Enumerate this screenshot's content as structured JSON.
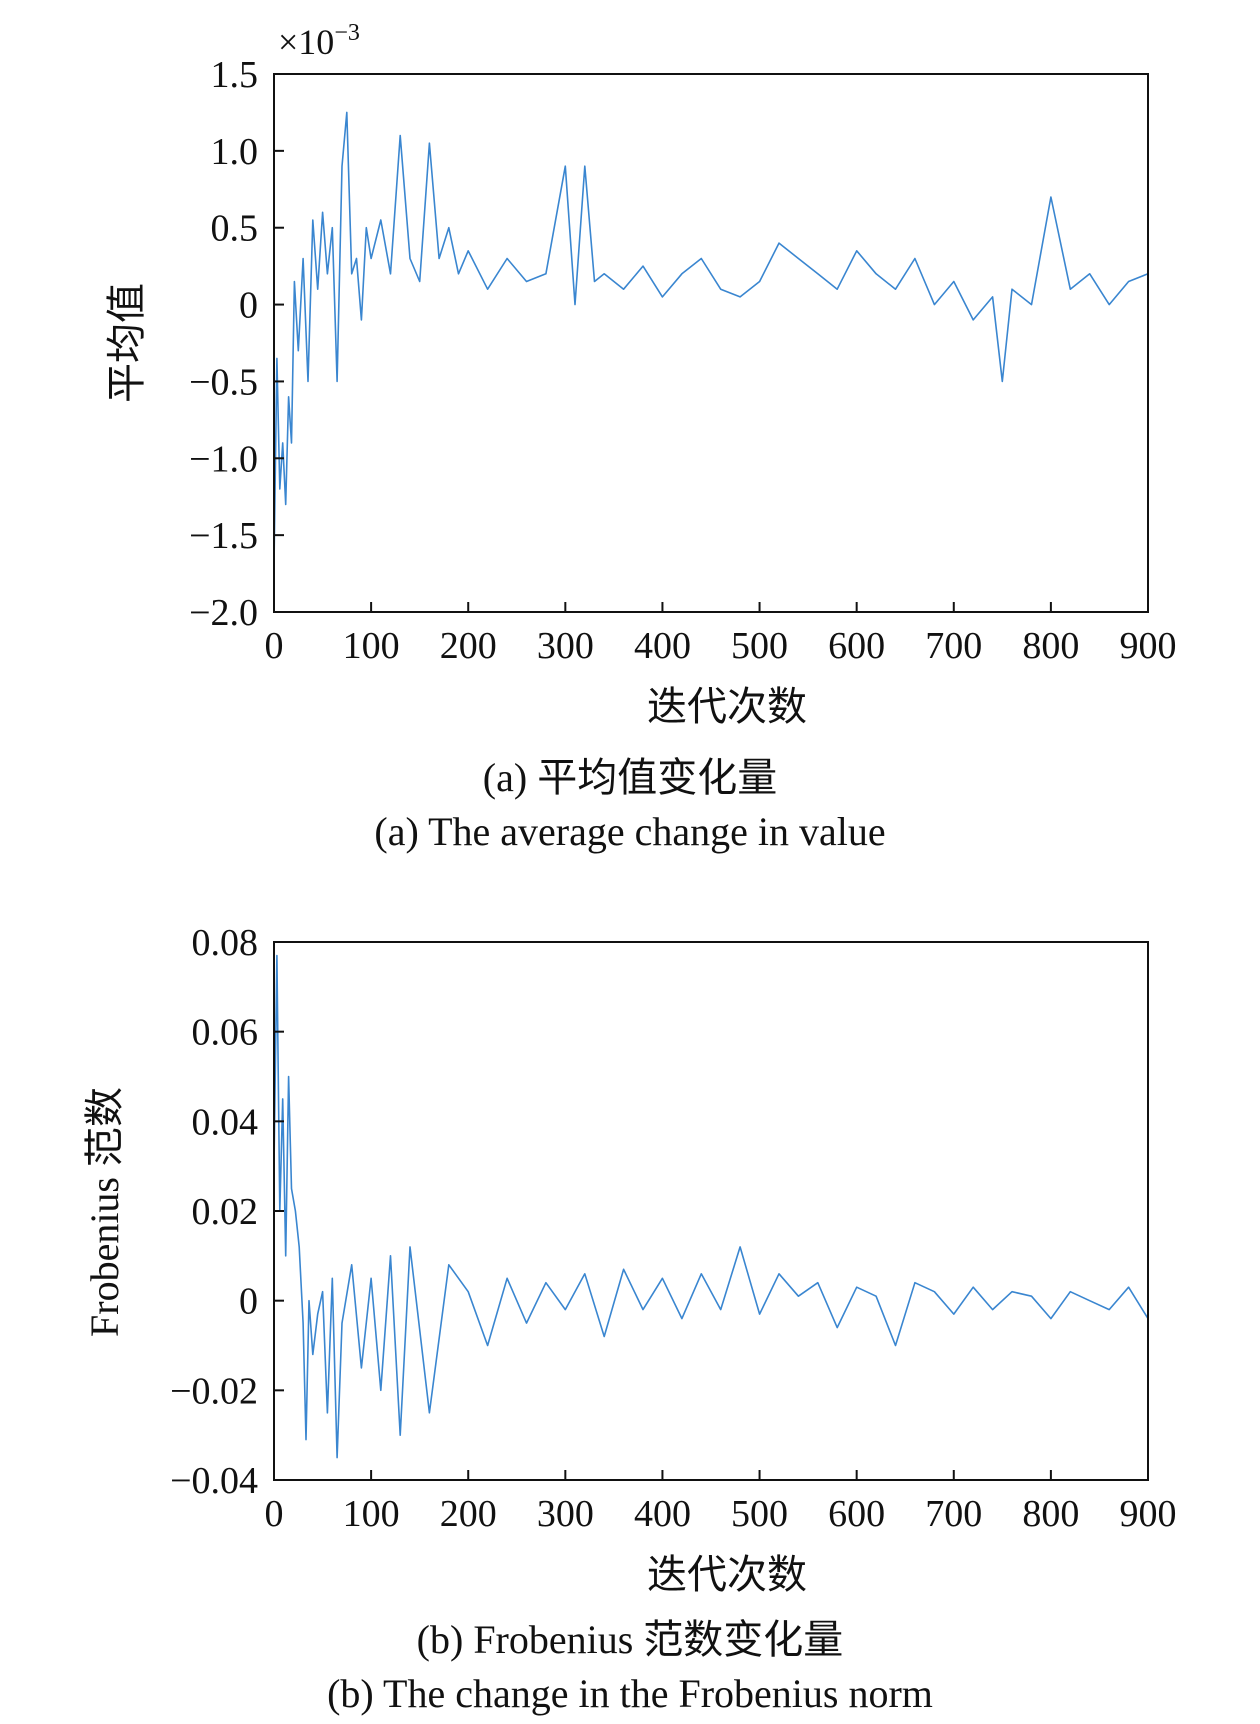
{
  "colors": {
    "series": "#3a86d0",
    "axis": "#111111"
  },
  "charts": [
    {
      "caption_cn": "(a) 平均值变化量",
      "caption_en": "(a) The average change in value",
      "chart_data": {
        "type": "line",
        "ylabel": "平均值",
        "xlabel": "迭代次数",
        "multiplier": "×10",
        "multiplier_exp": "−3",
        "xlim": [
          0,
          900
        ],
        "ylim": [
          -2.0,
          1.5
        ],
        "xticks": [
          "0",
          "100",
          "200",
          "300",
          "400",
          "500",
          "600",
          "700",
          "800",
          "900"
        ],
        "yticks": [
          "1.5",
          "1.0",
          "0.5",
          "0",
          "−0.5",
          "−1.0",
          "−1.5",
          "−2.0"
        ],
        "grid": false,
        "series": [
          {
            "x": [
              0,
              3,
              6,
              9,
              12,
              15,
              18,
              21,
              25,
              30,
              35,
              40,
              45,
              50,
              55,
              60,
              65,
              70,
              75,
              80,
              85,
              90,
              95,
              100,
              110,
              120,
              130,
              140,
              150,
              160,
              170,
              180,
              190,
              200,
              220,
              240,
              260,
              280,
              300,
              310,
              320,
              330,
              340,
              360,
              380,
              400,
              420,
              440,
              460,
              480,
              500,
              520,
              540,
              560,
              580,
              600,
              620,
              640,
              660,
              680,
              700,
              720,
              740,
              750,
              760,
              780,
              800,
              820,
              840,
              860,
              880,
              900
            ],
            "values": [
              -1.7,
              -0.35,
              -1.2,
              -0.9,
              -1.3,
              -0.6,
              -0.9,
              0.15,
              -0.3,
              0.3,
              -0.5,
              0.55,
              0.1,
              0.6,
              0.2,
              0.5,
              -0.5,
              0.9,
              1.25,
              0.2,
              0.3,
              -0.1,
              0.5,
              0.3,
              0.55,
              0.2,
              1.1,
              0.3,
              0.15,
              1.05,
              0.3,
              0.5,
              0.2,
              0.35,
              0.1,
              0.3,
              0.15,
              0.2,
              0.9,
              0.0,
              0.9,
              0.15,
              0.2,
              0.1,
              0.25,
              0.05,
              0.2,
              0.3,
              0.1,
              0.05,
              0.15,
              0.4,
              0.3,
              0.2,
              0.1,
              0.35,
              0.2,
              0.1,
              0.3,
              0.0,
              0.15,
              -0.1,
              0.05,
              -0.5,
              0.1,
              0.0,
              0.7,
              0.1,
              0.2,
              0.0,
              0.15,
              0.2
            ]
          }
        ]
      }
    },
    {
      "caption_cn": "(b) Frobenius 范数变化量",
      "caption_en": "(b) The change in the Frobenius norm",
      "chart_data": {
        "type": "line",
        "ylabel": "Frobenius 范数",
        "xlabel": "迭代次数",
        "xlim": [
          0,
          900
        ],
        "ylim": [
          -0.04,
          0.08
        ],
        "xticks": [
          "0",
          "100",
          "200",
          "300",
          "400",
          "500",
          "600",
          "700",
          "800",
          "900"
        ],
        "yticks": [
          "0.08",
          "0.06",
          "0.04",
          "0.02",
          "0",
          "−0.02",
          "−0.04"
        ],
        "grid": false,
        "series": [
          {
            "x": [
              0,
              3,
              6,
              9,
              12,
              15,
              18,
              22,
              26,
              30,
              33,
              36,
              40,
              45,
              50,
              55,
              60,
              65,
              70,
              80,
              90,
              100,
              110,
              120,
              130,
              140,
              160,
              180,
              200,
              220,
              240,
              260,
              280,
              300,
              320,
              340,
              360,
              380,
              400,
              420,
              440,
              460,
              480,
              500,
              520,
              540,
              560,
              580,
              600,
              620,
              640,
              660,
              680,
              700,
              720,
              740,
              760,
              780,
              800,
              820,
              840,
              860,
              880,
              900
            ],
            "values": [
              0.03,
              0.077,
              0.02,
              0.045,
              0.01,
              0.05,
              0.025,
              0.02,
              0.012,
              -0.005,
              -0.031,
              0.0,
              -0.012,
              -0.003,
              0.002,
              -0.025,
              0.005,
              -0.035,
              -0.005,
              0.008,
              -0.015,
              0.005,
              -0.02,
              0.01,
              -0.03,
              0.012,
              -0.025,
              0.008,
              0.002,
              -0.01,
              0.005,
              -0.005,
              0.004,
              -0.002,
              0.006,
              -0.008,
              0.007,
              -0.002,
              0.005,
              -0.004,
              0.006,
              -0.002,
              0.012,
              -0.003,
              0.006,
              0.001,
              0.004,
              -0.006,
              0.003,
              0.001,
              -0.01,
              0.004,
              0.002,
              -0.003,
              0.003,
              -0.002,
              0.002,
              0.001,
              -0.004,
              0.002,
              0.0,
              -0.002,
              0.003,
              -0.004
            ]
          }
        ]
      }
    }
  ]
}
